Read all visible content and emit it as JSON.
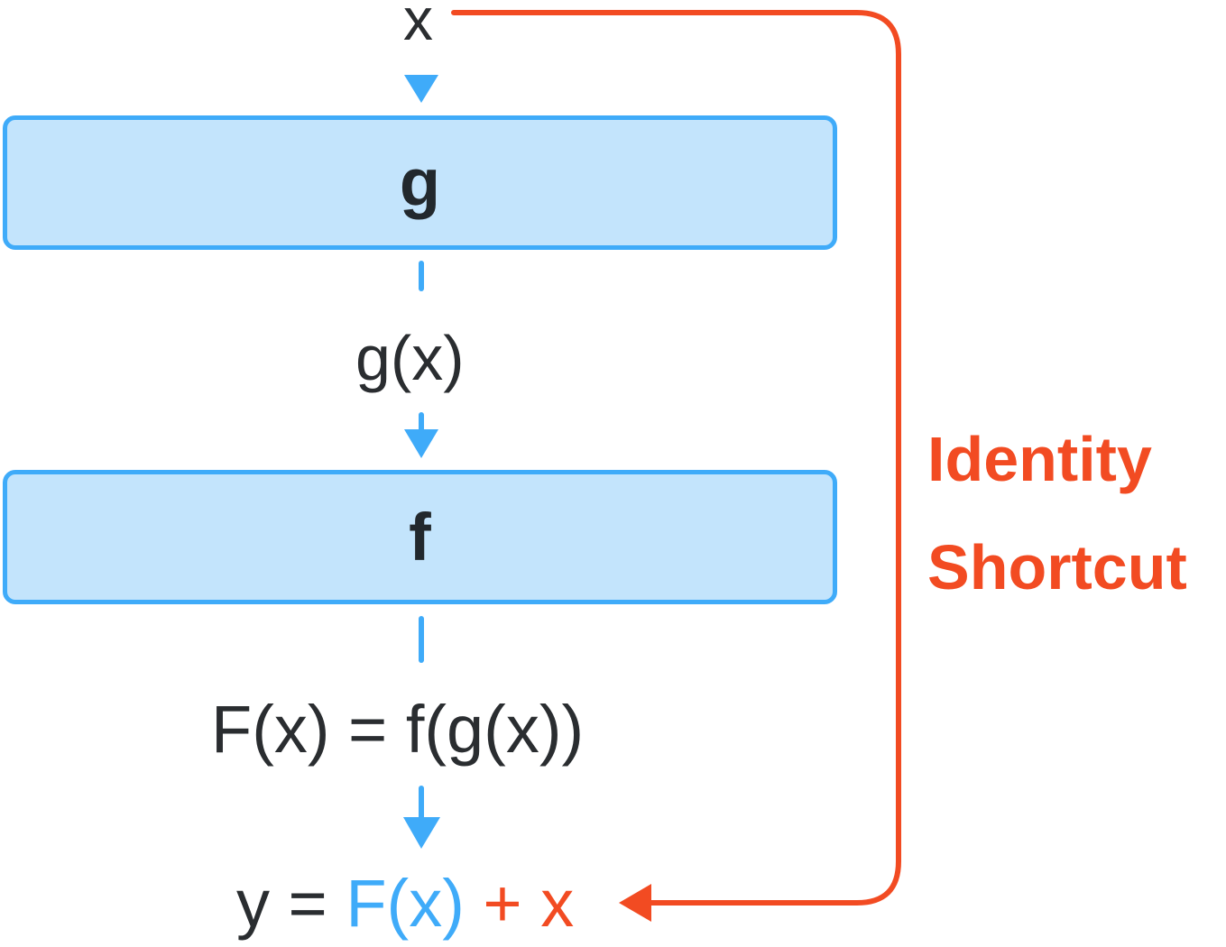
{
  "input": {
    "label": "x"
  },
  "layers": [
    {
      "name": "g"
    },
    {
      "name": "f"
    }
  ],
  "intermediate": {
    "label": "g(x)"
  },
  "residual_function": {
    "label": "F(x) = f(g(x))"
  },
  "output": {
    "prefix": "y = ",
    "residual": "F(x)",
    "plus": " + ",
    "identity": "x"
  },
  "shortcut": {
    "line1": "Identity",
    "line2": "Shortcut"
  },
  "colors": {
    "main_path": "#3fabf9",
    "shortcut": "#f24b22",
    "layer_fill": "#c3e4fc",
    "text": "#2a2d30"
  }
}
